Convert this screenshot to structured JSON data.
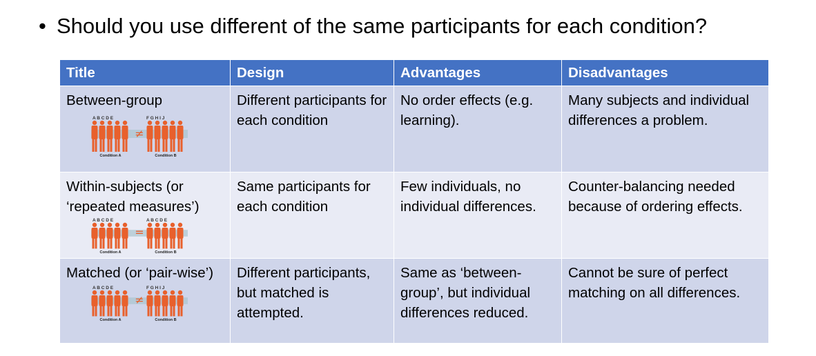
{
  "heading": {
    "bullet": "•",
    "text": "Should you use different of the same participants for each condition?"
  },
  "table": {
    "headers": [
      "Title",
      "Design",
      "Advantages",
      "Disadvantages"
    ],
    "rows": [
      {
        "title": "Between-group",
        "design": "Different participants for each condition",
        "advantages": "No order effects (e.g. learning).",
        "disadvantages": "Many subjects and individual differences a problem.",
        "diagram": {
          "letters_a": "A B C D E",
          "letters_b": "F G H I J",
          "symbol": "≠",
          "label_a": "Condition A",
          "label_b": "Condition B"
        }
      },
      {
        "title": "Within-subjects (or ‘repeated measures’)",
        "design": "Same participants for each condition",
        "advantages": "Few individuals, no individual differences.",
        "disadvantages": "Counter-balancing needed because of ordering effects.",
        "diagram": {
          "letters_a": "A B C D E",
          "letters_b": "A B C D E",
          "symbol": "=",
          "label_a": "Condition A",
          "label_b": "Condition B"
        }
      },
      {
        "title": "Matched (or ‘pair-wise’)",
        "design": "Different participants, but matched is attempted.",
        "advantages": "Same as ‘between-group’, but individual differences reduced.",
        "disadvantages": "Cannot be sure of perfect matching on all differences.",
        "diagram": {
          "letters_a": "A B C D E",
          "letters_b": "F G H I J",
          "symbol": "≠",
          "label_a": "Condition A",
          "label_b": "Condition B"
        }
      }
    ]
  },
  "colors": {
    "header_bg": "#4472c4",
    "row_dark": "#cfd5ea",
    "row_light": "#e9ebf5",
    "figure_orange": "#e8602c",
    "figure_band": "#a9c4cf"
  }
}
